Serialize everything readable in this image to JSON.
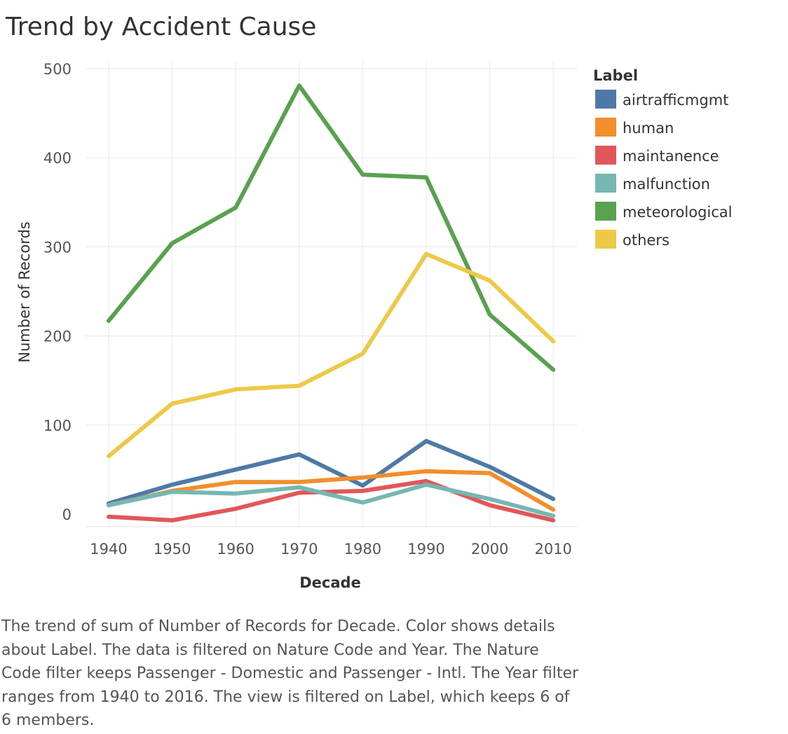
{
  "chart_data": {
    "type": "line",
    "title": "Trend by Accident Cause",
    "xlabel": "Decade",
    "ylabel": "Number of Records",
    "x": [
      1940,
      1950,
      1960,
      1970,
      1980,
      1990,
      2000,
      2010
    ],
    "x_ticks": [
      "1940",
      "1950",
      "1960",
      "1970",
      "1980",
      "1990",
      "2000",
      "2010"
    ],
    "y_ticks": [
      "0",
      "100",
      "200",
      "300",
      "400",
      "500"
    ],
    "ylim": [
      -15,
      525
    ],
    "grid": true,
    "legend": {
      "title": "Label",
      "placement": "right"
    },
    "series": [
      {
        "name": "airtrafficmgmt",
        "color": "#4e79a7",
        "values": [
          12,
          33,
          50,
          67,
          32,
          82,
          53,
          17
        ]
      },
      {
        "name": "human",
        "color": "#f28e2b",
        "values": [
          10,
          26,
          36,
          36,
          41,
          48,
          46,
          5
        ]
      },
      {
        "name": "maintanence",
        "color": "#e15759",
        "values": [
          -3,
          -7,
          6,
          24,
          26,
          37,
          10,
          -7
        ]
      },
      {
        "name": "malfunction",
        "color": "#76b7b2",
        "values": [
          10,
          25,
          23,
          30,
          13,
          33,
          17,
          -2
        ]
      },
      {
        "name": "meteorological",
        "color": "#59a14f",
        "values": [
          217,
          304,
          344,
          481,
          381,
          378,
          224,
          162
        ]
      },
      {
        "name": "others",
        "color": "#edc948",
        "values": [
          65,
          124,
          140,
          144,
          180,
          292,
          262,
          194
        ]
      }
    ]
  },
  "caption": "The trend of sum of Number of Records for Decade.  Color shows details about Label. The data is filtered on Nature Code and Year. The Nature Code filter keeps Passenger - Domestic and Passenger - Intl. The Year filter ranges from 1940 to 2016. The view is filtered on Label, which keeps 6 of 6 members."
}
